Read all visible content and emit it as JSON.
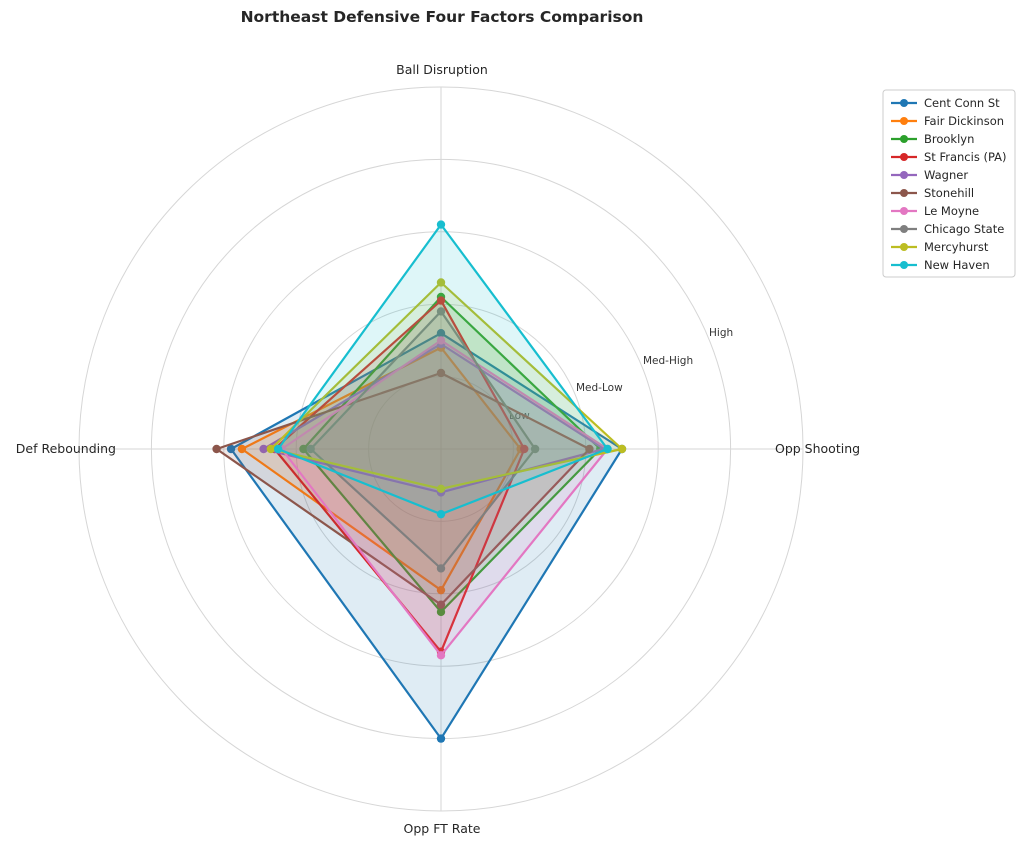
{
  "chart_data": {
    "type": "radar",
    "title": "Northeast Defensive Four Factors Comparison",
    "axes": [
      "Ball Disruption",
      "Opp Shooting",
      "Opp FT Rate",
      "Def Rebounding"
    ],
    "ring_labels": [
      "Low",
      "Med-Low",
      "Med-High",
      "High"
    ],
    "rlim": [
      0,
      5
    ],
    "grid": true,
    "legend_position": "top-right",
    "series": [
      {
        "name": "Cent Conn St",
        "color": "#1f77b4",
        "values": [
          1.6,
          2.5,
          4.0,
          2.9
        ]
      },
      {
        "name": "Fair Dickinson",
        "color": "#ff7f0e",
        "values": [
          1.4,
          1.1,
          1.95,
          2.75
        ]
      },
      {
        "name": "Brooklyn",
        "color": "#2ca02c",
        "values": [
          2.1,
          2.2,
          2.25,
          1.9
        ]
      },
      {
        "name": "St Francis (PA)",
        "color": "#d62728",
        "values": [
          2.05,
          1.15,
          2.8,
          2.3
        ]
      },
      {
        "name": "Wagner",
        "color": "#9467bd",
        "values": [
          1.45,
          2.25,
          0.6,
          2.45
        ]
      },
      {
        "name": "Stonehill",
        "color": "#8c564b",
        "values": [
          1.05,
          2.05,
          2.15,
          3.1
        ]
      },
      {
        "name": "Le Moyne",
        "color": "#e377c2",
        "values": [
          1.5,
          2.3,
          2.85,
          2.2
        ]
      },
      {
        "name": "Chicago State",
        "color": "#7f7f7f",
        "values": [
          1.9,
          1.3,
          1.65,
          1.8
        ]
      },
      {
        "name": "Mercyhurst",
        "color": "#bcbd22",
        "values": [
          2.3,
          2.5,
          0.55,
          2.35
        ]
      },
      {
        "name": "New Haven",
        "color": "#17becf",
        "values": [
          3.1,
          2.3,
          0.9,
          2.25
        ]
      }
    ]
  }
}
